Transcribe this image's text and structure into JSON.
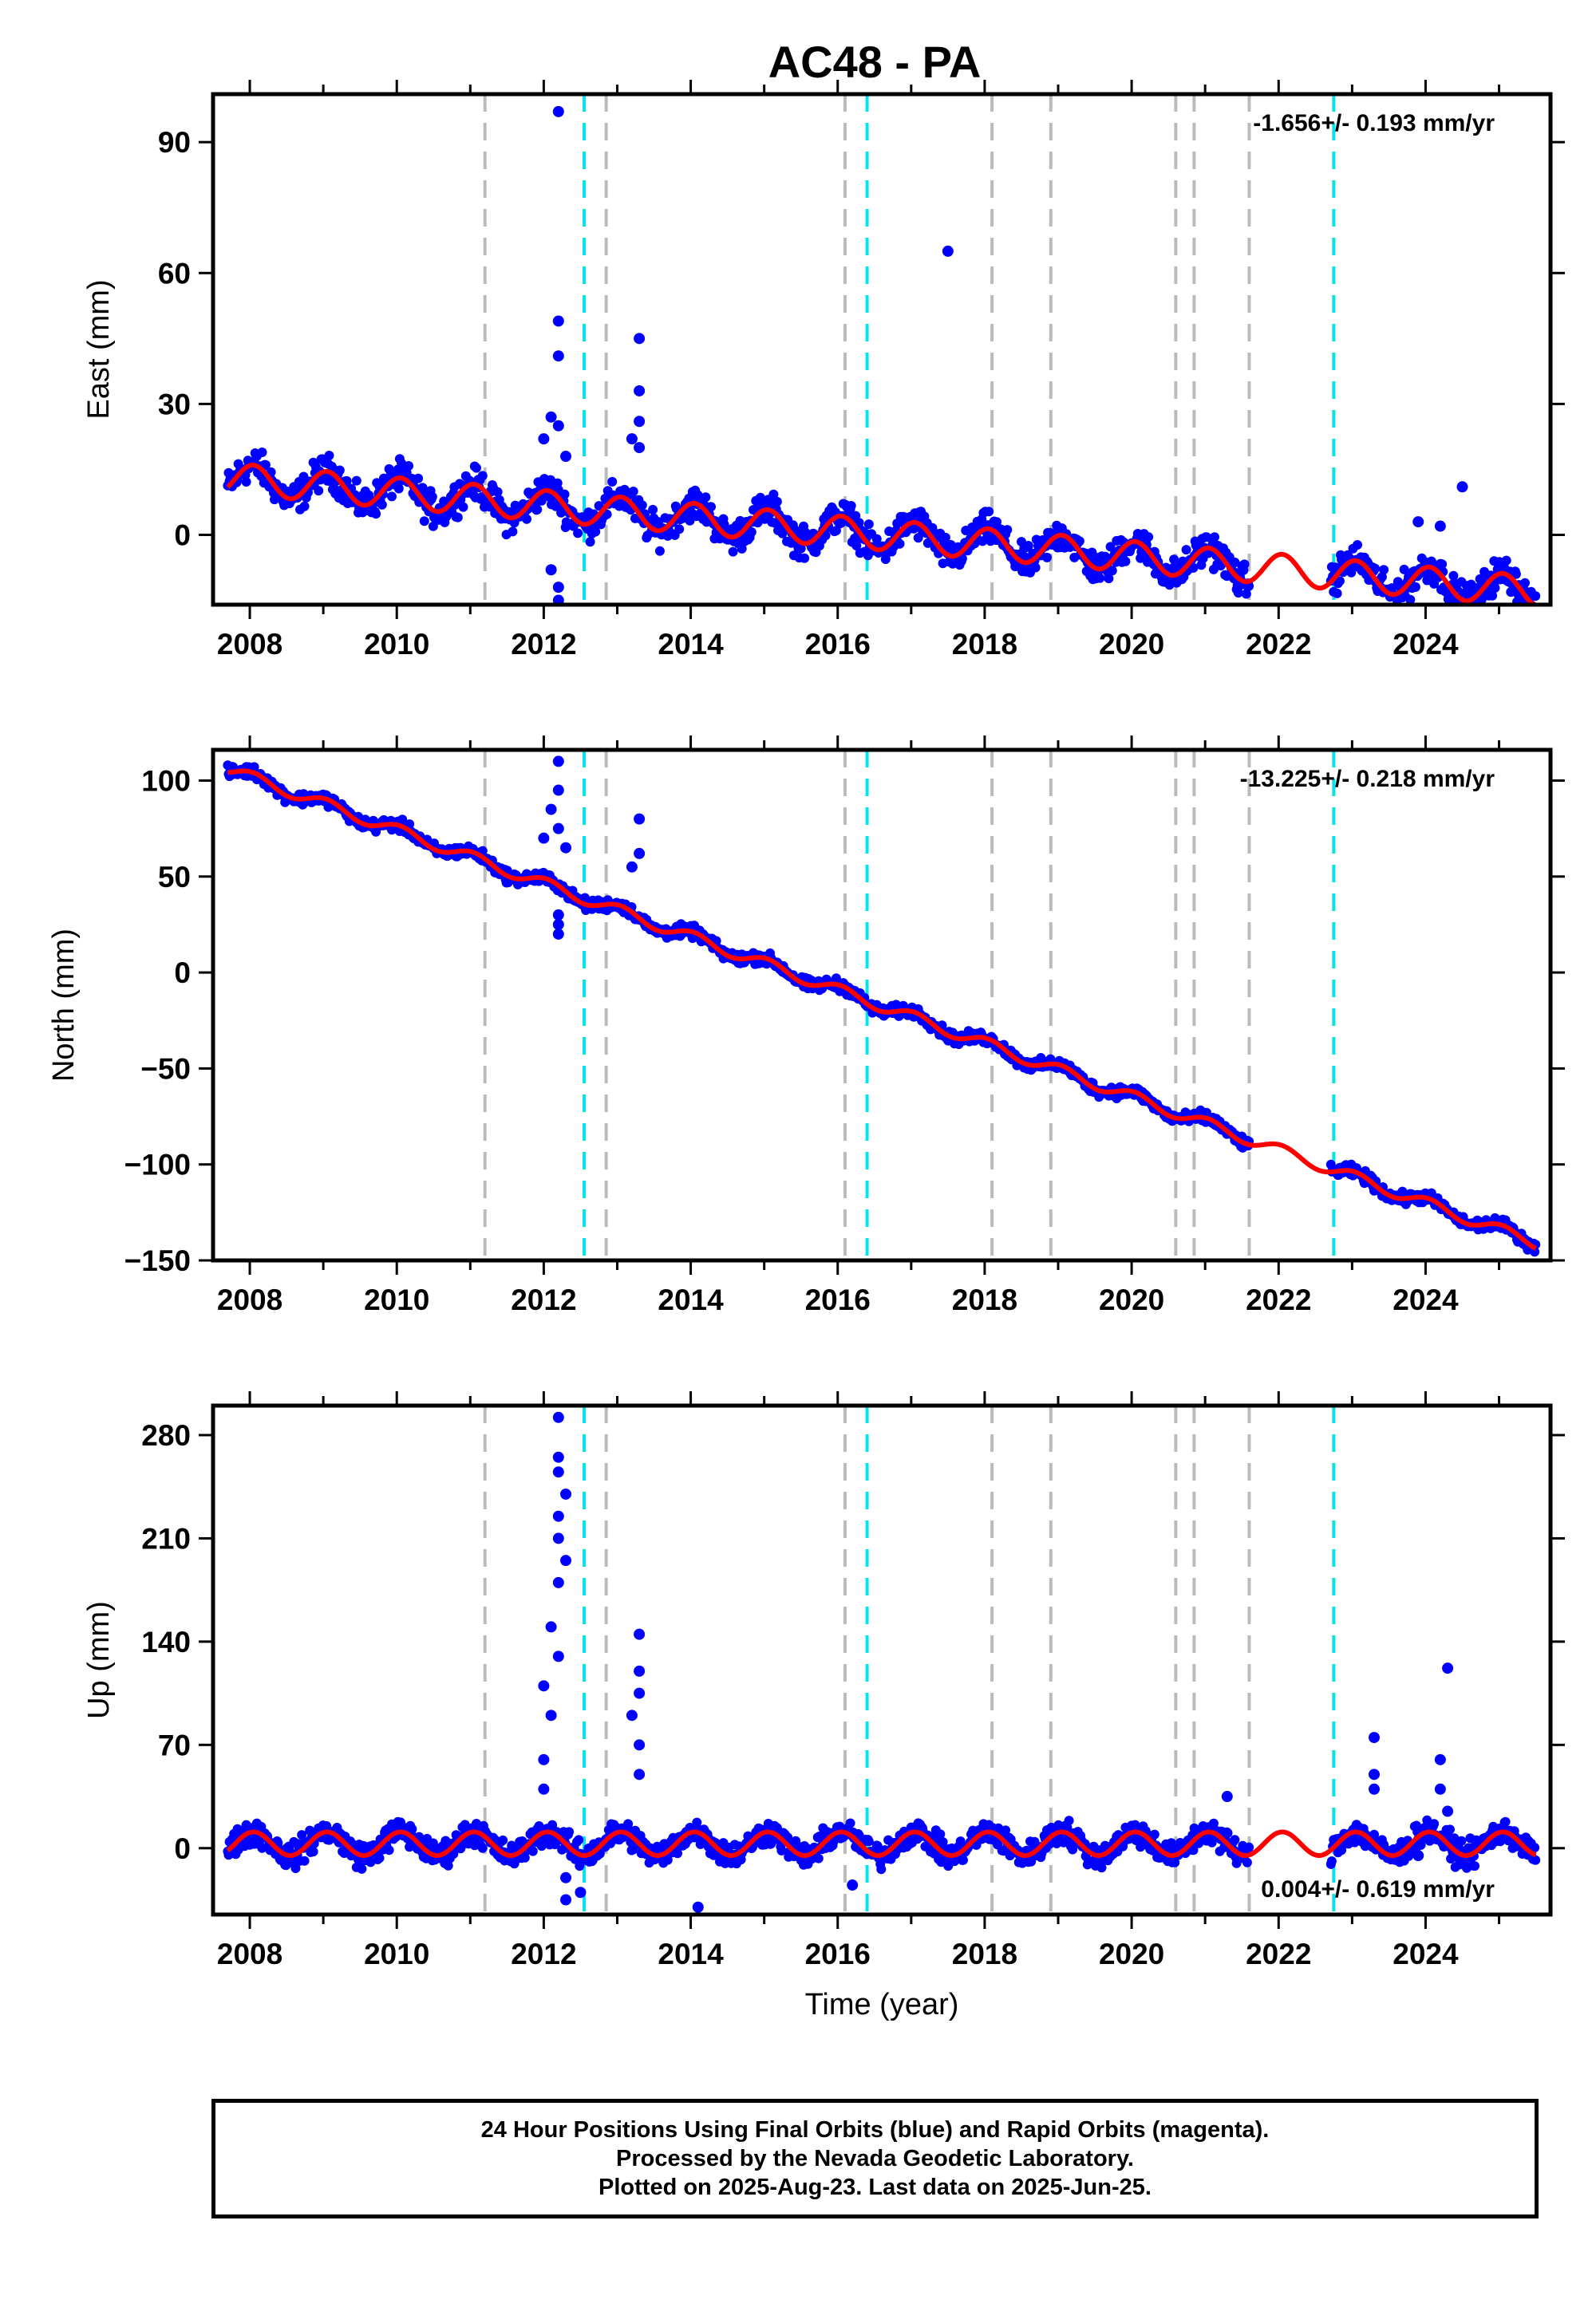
{
  "title": "AC48 - PA",
  "chart_data": [
    {
      "type": "scatter",
      "name": "east",
      "ylabel": "East (mm)",
      "xlabel": "",
      "xlim": [
        2007.5,
        2025.7
      ],
      "ylim": [
        -16,
        101
      ],
      "yticks": [
        0,
        30,
        60,
        90
      ],
      "xticks": [
        2008,
        2010,
        2012,
        2014,
        2016,
        2018,
        2020,
        2022,
        2024
      ],
      "xtick_labels": [
        "2008",
        "2010",
        "2012",
        "2014",
        "2016",
        "2018",
        "2020",
        "2022",
        "2024"
      ],
      "annotation": "-1.656+/- 0.193 mm/yr",
      "annotation_position": "top-right",
      "trend": {
        "start": [
          2007.7,
          13
        ],
        "end": [
          2025.5,
          -13
        ],
        "amplitude": 3.5
      },
      "scatter_noise": 3,
      "outliers": [
        [
          2012.2,
          97
        ],
        [
          2012.2,
          49
        ],
        [
          2012.2,
          41
        ],
        [
          2012.1,
          27
        ],
        [
          2012.2,
          25
        ],
        [
          2012.0,
          22
        ],
        [
          2012.3,
          18
        ],
        [
          2012.1,
          -8
        ],
        [
          2012.2,
          -12
        ],
        [
          2012.2,
          -15
        ],
        [
          2013.3,
          45
        ],
        [
          2013.3,
          33
        ],
        [
          2013.3,
          26
        ],
        [
          2013.2,
          22
        ],
        [
          2013.3,
          20
        ],
        [
          2017.5,
          65
        ],
        [
          2024.5,
          11
        ],
        [
          2024.2,
          2
        ],
        [
          2023.9,
          3
        ]
      ],
      "gap": [
        2021.6,
        2022.7
      ]
    },
    {
      "type": "scatter",
      "name": "north",
      "ylabel": "North (mm)",
      "xlabel": "",
      "xlim": [
        2007.5,
        2025.7
      ],
      "ylim": [
        -150,
        116
      ],
      "yticks": [
        -150,
        -100,
        -50,
        0,
        50,
        100
      ],
      "ytick_labels": [
        "−150",
        "−100",
        "−50",
        "0",
        "50",
        "100"
      ],
      "xticks": [
        2008,
        2010,
        2012,
        2014,
        2016,
        2018,
        2020,
        2022,
        2024
      ],
      "xtick_labels": [
        "2008",
        "2010",
        "2012",
        "2014",
        "2016",
        "2018",
        "2020",
        "2022",
        "2024"
      ],
      "annotation": "-13.225+/- 0.218 mm/yr",
      "annotation_position": "top-right",
      "trend": {
        "start": [
          2007.7,
          106
        ],
        "end": [
          2025.5,
          -141
        ],
        "amplitude": 3
      },
      "scatter_noise": 2.5,
      "outliers": [
        [
          2012.2,
          110
        ],
        [
          2012.2,
          95
        ],
        [
          2012.1,
          85
        ],
        [
          2012.2,
          75
        ],
        [
          2012.0,
          70
        ],
        [
          2012.3,
          65
        ],
        [
          2012.2,
          30
        ],
        [
          2012.2,
          25
        ],
        [
          2012.2,
          20
        ],
        [
          2013.3,
          80
        ],
        [
          2013.3,
          62
        ],
        [
          2013.2,
          55
        ]
      ],
      "gap": [
        2021.6,
        2022.7
      ]
    },
    {
      "type": "scatter",
      "name": "up",
      "ylabel": "Up (mm)",
      "xlabel": "Time (year)",
      "xlim": [
        2007.5,
        2025.7
      ],
      "ylim": [
        -45,
        300
      ],
      "yticks": [
        0,
        70,
        140,
        210,
        280
      ],
      "xticks": [
        2008,
        2010,
        2012,
        2014,
        2016,
        2018,
        2020,
        2022,
        2024
      ],
      "xtick_labels": [
        "2008",
        "2010",
        "2012",
        "2014",
        "2016",
        "2018",
        "2020",
        "2022",
        "2024"
      ],
      "annotation": "0.004+/- 0.619 mm/yr",
      "annotation_position": "bottom-right",
      "trend": {
        "start": [
          2007.7,
          3
        ],
        "end": [
          2025.5,
          3
        ],
        "amplitude": 8
      },
      "scatter_noise": 7,
      "outliers": [
        [
          2012.2,
          292
        ],
        [
          2012.2,
          265
        ],
        [
          2012.2,
          255
        ],
        [
          2012.3,
          240
        ],
        [
          2012.2,
          225
        ],
        [
          2012.2,
          210
        ],
        [
          2012.3,
          195
        ],
        [
          2012.2,
          180
        ],
        [
          2012.1,
          150
        ],
        [
          2012.2,
          130
        ],
        [
          2012.0,
          110
        ],
        [
          2012.1,
          90
        ],
        [
          2012.0,
          60
        ],
        [
          2012.0,
          40
        ],
        [
          2012.3,
          -20
        ],
        [
          2012.3,
          -35
        ],
        [
          2013.3,
          145
        ],
        [
          2013.3,
          120
        ],
        [
          2013.3,
          105
        ],
        [
          2013.2,
          90
        ],
        [
          2013.3,
          70
        ],
        [
          2013.3,
          50
        ],
        [
          2023.3,
          75
        ],
        [
          2023.3,
          50
        ],
        [
          2023.3,
          40
        ],
        [
          2024.3,
          122
        ],
        [
          2024.2,
          60
        ],
        [
          2024.2,
          40
        ],
        [
          2024.3,
          25
        ],
        [
          2021.3,
          35
        ],
        [
          2023.9,
          -5
        ],
        [
          2014.1,
          -40
        ],
        [
          2016.2,
          -25
        ],
        [
          2012.5,
          -30
        ]
      ],
      "gap": [
        2021.6,
        2022.7
      ]
    }
  ],
  "discontinuities": {
    "antenna_changes": [
      2011.2,
      2012.85,
      2016.1,
      2018.1,
      2018.9,
      2020.6,
      2020.85,
      2021.6
    ],
    "earthquakes": [
      2012.55,
      2016.4,
      2022.75
    ]
  },
  "colors": {
    "data": "#0000ff",
    "model": "#ff0000",
    "antenna_change": "#bbbbbb",
    "earthquake": "#00e5ee",
    "axis": "#000000"
  },
  "footer": {
    "line1": "24 Hour Positions Using Final Orbits (blue) and Rapid Orbits (magenta).",
    "line2": "Processed by the Nevada Geodetic Laboratory.",
    "line3": "Plotted on 2025-Aug-23. Last data on 2025-Jun-25."
  }
}
